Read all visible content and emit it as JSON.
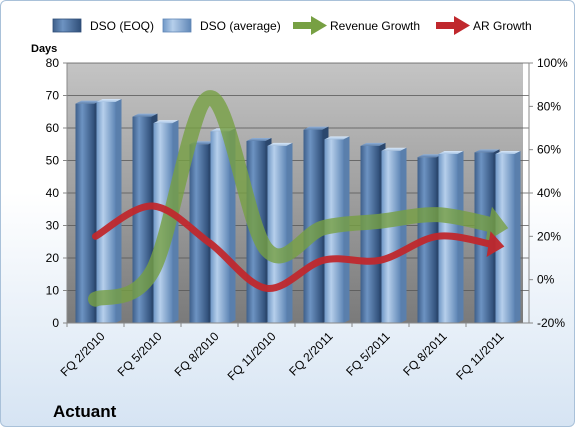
{
  "chart_data": {
    "type": "bar",
    "title": "Actuant",
    "ylabel": "Days",
    "categories": [
      "FQ 2/2010",
      "FQ 5/2010",
      "FQ 8/2010",
      "FQ 11/2010",
      "FQ 2/2011",
      "FQ 5/2011",
      "FQ 8/2011",
      "FQ 11/2011"
    ],
    "y_ticks": [
      "0",
      "10",
      "20",
      "30",
      "40",
      "50",
      "60",
      "70",
      "80"
    ],
    "y2_ticks": [
      "-20%",
      "0%",
      "20%",
      "40%",
      "60%",
      "80%",
      "100%"
    ],
    "ylim": [
      0,
      80
    ],
    "y2lim": [
      -20,
      100
    ],
    "grid": true,
    "legend": "top",
    "series": [
      {
        "name": "DSO (EOQ)",
        "type": "bar",
        "axis": "left",
        "color": "#4a6f9f",
        "values": [
          67.5,
          63.5,
          55,
          56,
          59.5,
          54.5,
          51,
          52.5
        ]
      },
      {
        "name": "DSO (average)",
        "type": "bar",
        "axis": "left",
        "color": "#8db1d9",
        "values": [
          68,
          61.5,
          59,
          54.5,
          56.5,
          53,
          52,
          52
        ]
      },
      {
        "name": "Revenue Growth",
        "type": "line",
        "axis": "right",
        "color": "#77a043",
        "values": [
          -9,
          4,
          84,
          14,
          24,
          27,
          30,
          25
        ]
      },
      {
        "name": "AR Growth",
        "type": "line",
        "axis": "right",
        "color": "#c0282d",
        "values": [
          20,
          34,
          17,
          -4,
          9,
          9,
          20,
          16
        ]
      }
    ]
  }
}
